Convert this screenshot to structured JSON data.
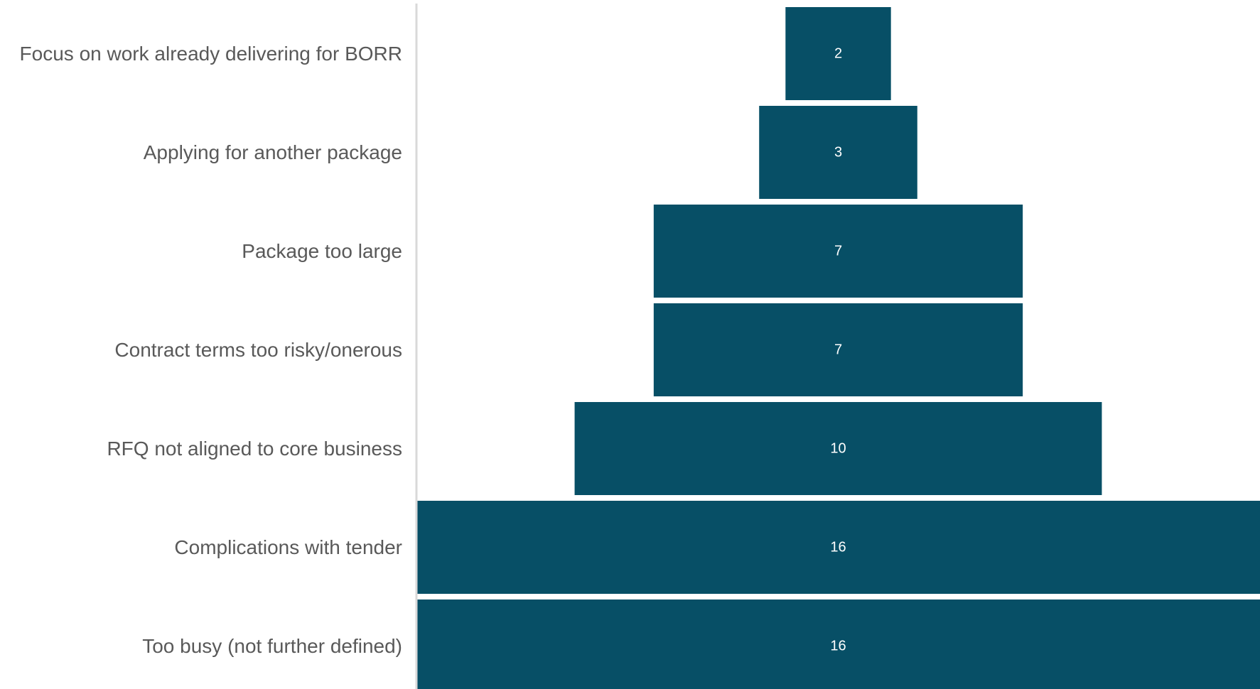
{
  "chart_data": {
    "type": "bar",
    "orientation": "horizontal",
    "style": "funnel",
    "categories": [
      "Focus on work already delivering for BORR",
      "Applying for another package",
      "Package too large",
      "Contract terms too risky/onerous",
      "RFQ not aligned to core business",
      "Complications with tender",
      "Too busy (not further defined)"
    ],
    "values": [
      2,
      3,
      7,
      7,
      10,
      16,
      16
    ],
    "title": "",
    "xlabel": "",
    "ylabel": "",
    "grid": false,
    "legend": "none",
    "colors": {
      "bar": "#074F66",
      "label_text": "#595959",
      "value_text": "#FFFFFF",
      "axis_line": "#D9D9D9"
    }
  }
}
